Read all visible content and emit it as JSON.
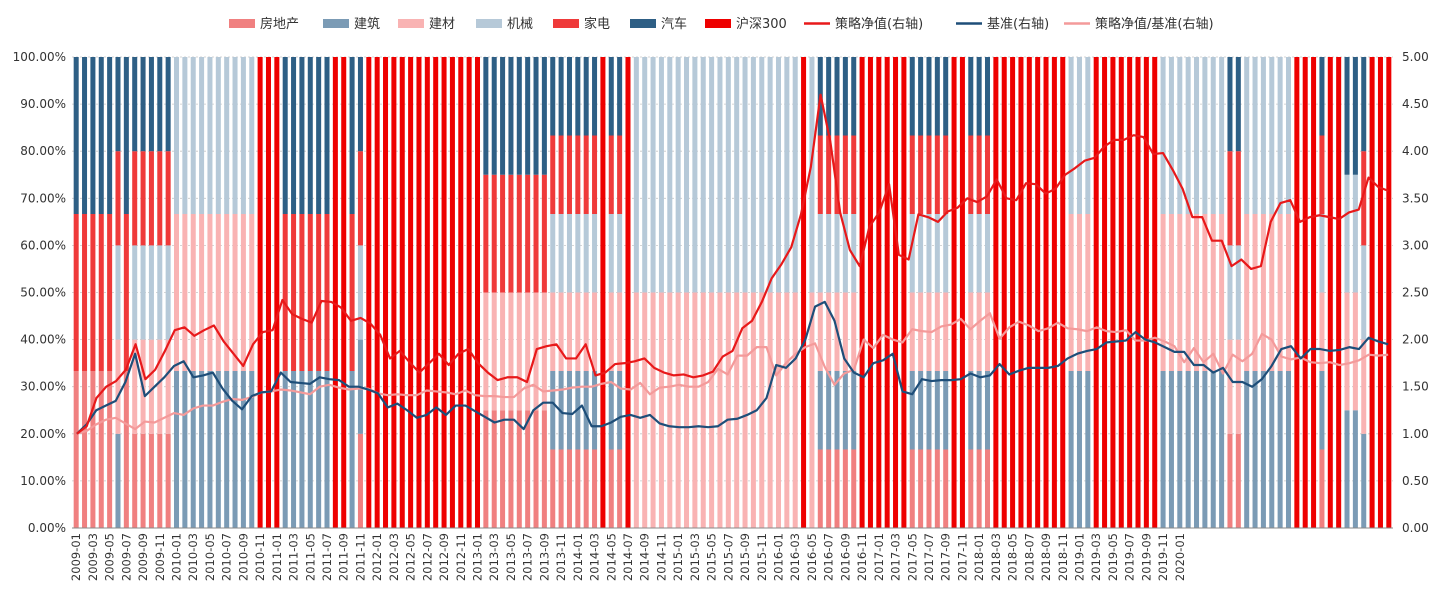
{
  "chart_data": {
    "type": "bar",
    "stacked": true,
    "legend_position": "top",
    "grid": "horizontal dotted",
    "left_axis": {
      "ylim": [
        0,
        1
      ],
      "ticks": [
        "0.00%",
        "10.00%",
        "20.00%",
        "30.00%",
        "40.00%",
        "50.00%",
        "60.00%",
        "70.00%",
        "80.00%",
        "90.00%",
        "100.00%"
      ]
    },
    "right_axis": {
      "ylim": [
        0,
        5
      ],
      "ticks": [
        "0.00",
        "0.50",
        "1.00",
        "1.50",
        "2.00",
        "2.50",
        "3.00",
        "3.50",
        "4.00",
        "4.50",
        "5.00"
      ]
    },
    "x_tick_labels": [
      "2009-01",
      "2009-03",
      "2009-05",
      "2009-07",
      "2009-09",
      "2009-11",
      "2010-01",
      "2010-03",
      "2010-05",
      "2010-07",
      "2010-09",
      "2010-11",
      "2011-01",
      "2011-03",
      "2011-05",
      "2011-07",
      "2011-09",
      "2011-11",
      "2012-01",
      "2012-03",
      "2012-05",
      "2012-07",
      "2012-09",
      "2012-11",
      "2013-01",
      "2013-03",
      "2013-05",
      "2013-07",
      "2013-09",
      "2013-11",
      "2014-01",
      "2014-03",
      "2014-05",
      "2014-07",
      "2014-09",
      "2014-11",
      "2015-01",
      "2015-03",
      "2015-05",
      "2015-07",
      "2015-09",
      "2015-11",
      "2016-01",
      "2016-03",
      "2016-05",
      "2016-07",
      "2016-09",
      "2016-11",
      "2017-01",
      "2017-03",
      "2017-05",
      "2017-07",
      "2017-09",
      "2017-11",
      "2018-01",
      "2018-03",
      "2018-05",
      "2018-07",
      "2018-09",
      "2018-11",
      "2019-01",
      "2019-03",
      "2019-05",
      "2019-07",
      "2019-09",
      "2019-11",
      "2020-01"
    ],
    "bar_series": [
      {
        "name": "房地产",
        "color": "#f08080"
      },
      {
        "name": "建筑",
        "color": "#7b9bb5"
      },
      {
        "name": "建材",
        "color": "#f9b3b3"
      },
      {
        "name": "机械",
        "color": "#b6c9d8"
      },
      {
        "name": "家电",
        "color": "#ef3a3a"
      },
      {
        "name": "汽车",
        "color": "#2e5f85"
      },
      {
        "name": "沪深300",
        "color": "#ee0000"
      }
    ],
    "line_series": [
      {
        "name": "策略净值(右轴)",
        "color": "#e8191a"
      },
      {
        "name": "基准(右轴)",
        "color": "#1e4e79"
      },
      {
        "name": "策略净值/基准(右轴)",
        "color": "#f49a9a"
      }
    ],
    "allocation_months": [
      [
        "房地产",
        "家电",
        "汽车"
      ],
      [
        "房地产",
        "家电",
        "汽车"
      ],
      [
        "房地产",
        "家电",
        "汽车"
      ],
      [
        "房地产",
        "家电",
        "汽车"
      ],
      [
        "房地产",
        "家电",
        "汽车"
      ],
      [
        "建筑",
        "建材",
        "机械",
        "家电",
        "汽车"
      ],
      [
        "房地产",
        "家电",
        "汽车"
      ],
      [
        "房地产",
        "建材",
        "机械",
        "家电",
        "汽车"
      ],
      [
        "房地产",
        "建材",
        "机械",
        "家电",
        "汽车"
      ],
      [
        "房地产",
        "建材",
        "机械",
        "家电",
        "汽车"
      ],
      [
        "房地产",
        "建材",
        "机械",
        "家电",
        "汽车"
      ],
      [
        "房地产",
        "建材",
        "机械",
        "家电",
        "汽车"
      ],
      [
        "建筑",
        "建材",
        "机械"
      ],
      [
        "建筑",
        "建材",
        "机械"
      ],
      [
        "建筑",
        "建材",
        "机械"
      ],
      [
        "建筑",
        "建材",
        "机械"
      ],
      [
        "建筑",
        "建材",
        "机械"
      ],
      [
        "建筑",
        "建材",
        "机械"
      ],
      [
        "建筑",
        "建材",
        "机械"
      ],
      [
        "建筑",
        "建材",
        "机械"
      ],
      [
        "建筑",
        "建材",
        "机械"
      ],
      [
        "建筑",
        "建材",
        "机械"
      ],
      [
        "沪深300"
      ],
      [
        "沪深300"
      ],
      [
        "沪深300"
      ],
      [
        "建筑",
        "家电",
        "汽车"
      ],
      [
        "建筑",
        "家电",
        "汽车"
      ],
      [
        "建筑",
        "家电",
        "汽车"
      ],
      [
        "建筑",
        "家电",
        "汽车"
      ],
      [
        "建筑",
        "家电",
        "汽车"
      ],
      [
        "建筑",
        "家电",
        "汽车"
      ],
      [
        "沪深300"
      ],
      [
        "沪深300"
      ],
      [
        "建筑",
        "家电",
        "汽车"
      ],
      [
        "房地产",
        "建筑",
        "机械",
        "家电",
        "汽车"
      ],
      [
        "沪深300"
      ],
      [
        "沪深300"
      ],
      [
        "沪深300"
      ],
      [
        "沪深300"
      ],
      [
        "沪深300"
      ],
      [
        "沪深300"
      ],
      [
        "沪深300"
      ],
      [
        "沪深300"
      ],
      [
        "沪深300"
      ],
      [
        "沪深300"
      ],
      [
        "沪深300"
      ],
      [
        "沪深300"
      ],
      [
        "沪深300"
      ],
      [
        "沪深300"
      ],
      [
        "房地产",
        "建材",
        "家电",
        "汽车"
      ],
      [
        "房地产",
        "建材",
        "家电",
        "汽车"
      ],
      [
        "房地产",
        "建材",
        "家电",
        "汽车"
      ],
      [
        "房地产",
        "建材",
        "家电",
        "汽车"
      ],
      [
        "房地产",
        "建材",
        "家电",
        "汽车"
      ],
      [
        "房地产",
        "建材",
        "家电",
        "汽车"
      ],
      [
        "房地产",
        "建材",
        "家电",
        "汽车"
      ],
      [
        "房地产",
        "建材",
        "家电",
        "汽车"
      ],
      [
        "房地产",
        "建筑",
        "建材",
        "机械",
        "家电",
        "汽车"
      ],
      [
        "房地产",
        "建筑",
        "建材",
        "机械",
        "家电",
        "汽车"
      ],
      [
        "房地产",
        "建筑",
        "建材",
        "机械",
        "家电",
        "汽车"
      ],
      [
        "房地产",
        "建筑",
        "建材",
        "机械",
        "家电",
        "汽车"
      ],
      [
        "房地产",
        "建筑",
        "建材",
        "机械",
        "家电",
        "汽车"
      ],
      [
        "房地产",
        "建筑",
        "建材",
        "机械",
        "家电",
        "汽车"
      ],
      [
        "沪深300"
      ],
      [
        "房地产",
        "建筑",
        "建材",
        "机械",
        "家电",
        "汽车"
      ],
      [
        "房地产",
        "建筑",
        "建材",
        "机械",
        "家电",
        "汽车"
      ],
      [
        "沪深300"
      ],
      [
        "建材",
        "机械"
      ],
      [
        "建材",
        "机械"
      ],
      [
        "建材",
        "机械"
      ],
      [
        "建材",
        "机械"
      ],
      [
        "建材",
        "机械"
      ],
      [
        "建材",
        "机械"
      ],
      [
        "建材",
        "机械"
      ],
      [
        "建材",
        "机械"
      ],
      [
        "建材",
        "机械"
      ],
      [
        "建材",
        "机械"
      ],
      [
        "建材",
        "机械"
      ],
      [
        "建材",
        "机械"
      ],
      [
        "建材",
        "机械"
      ],
      [
        "建材",
        "机械"
      ],
      [
        "建材",
        "机械"
      ],
      [
        "建材",
        "机械"
      ],
      [
        "建材",
        "机械"
      ],
      [
        "建材",
        "机械"
      ],
      [
        "建材",
        "机械"
      ],
      [
        "建材",
        "机械"
      ],
      [
        "沪深300"
      ],
      [
        "建材",
        "机械"
      ],
      [
        "房地产",
        "建筑",
        "建材",
        "机械",
        "家电",
        "汽车"
      ],
      [
        "房地产",
        "建筑",
        "建材",
        "机械",
        "家电",
        "汽车"
      ],
      [
        "房地产",
        "建筑",
        "建材",
        "机械",
        "家电",
        "汽车"
      ],
      [
        "房地产",
        "建筑",
        "建材",
        "机械",
        "家电",
        "汽车"
      ],
      [
        "房地产",
        "建筑",
        "建材",
        "机械",
        "家电",
        "汽车"
      ],
      [
        "沪深300"
      ],
      [
        "沪深300"
      ],
      [
        "沪深300"
      ],
      [
        "沪深300"
      ],
      [
        "沪深300"
      ],
      [
        "沪深300"
      ],
      [
        "房地产",
        "建筑",
        "建材",
        "机械",
        "家电",
        "汽车"
      ],
      [
        "房地产",
        "建筑",
        "建材",
        "机械",
        "家电",
        "汽车"
      ],
      [
        "房地产",
        "建筑",
        "建材",
        "机械",
        "家电",
        "汽车"
      ],
      [
        "房地产",
        "建筑",
        "建材",
        "机械",
        "家电",
        "汽车"
      ],
      [
        "房地产",
        "建筑",
        "建材",
        "机械",
        "家电",
        "汽车"
      ],
      [
        "沪深300"
      ],
      [
        "沪深300"
      ],
      [
        "房地产",
        "建筑",
        "建材",
        "机械",
        "家电",
        "汽车"
      ],
      [
        "房地产",
        "建筑",
        "建材",
        "机械",
        "家电",
        "汽车"
      ],
      [
        "房地产",
        "建筑",
        "建材",
        "机械",
        "家电",
        "汽车"
      ],
      [
        "沪深300"
      ],
      [
        "沪深300"
      ],
      [
        "沪深300"
      ],
      [
        "沪深300"
      ],
      [
        "沪深300"
      ],
      [
        "沪深300"
      ],
      [
        "沪深300"
      ],
      [
        "沪深300"
      ],
      [
        "沪深300"
      ],
      [
        "建筑",
        "建材",
        "机械"
      ],
      [
        "建筑",
        "建材",
        "机械"
      ],
      [
        "建筑",
        "建材",
        "机械"
      ],
      [
        "沪深300"
      ],
      [
        "沪深300"
      ],
      [
        "沪深300"
      ],
      [
        "沪深300"
      ],
      [
        "沪深300"
      ],
      [
        "沪深300"
      ],
      [
        "沪深300"
      ],
      [
        "沪深300"
      ],
      [
        "建筑",
        "建材",
        "机械"
      ],
      [
        "建筑",
        "建材",
        "机械"
      ],
      [
        "建筑",
        "建材",
        "机械"
      ],
      [
        "建筑",
        "建材",
        "机械"
      ],
      [
        "建筑",
        "建材",
        "机械"
      ],
      [
        "建筑",
        "建材",
        "机械"
      ],
      [
        "建筑",
        "建材",
        "机械"
      ],
      [
        "建筑",
        "建材",
        "机械"
      ],
      [
        "房地产",
        "建材",
        "机械",
        "家电",
        "汽车"
      ],
      [
        "房地产",
        "建材",
        "机械",
        "家电",
        "汽车"
      ],
      [
        "建筑",
        "建材",
        "机械"
      ],
      [
        "建筑",
        "建材",
        "机械"
      ],
      [
        "建筑",
        "建材",
        "机械"
      ],
      [
        "建筑",
        "建材",
        "机械"
      ],
      [
        "建筑",
        "建材",
        "机械"
      ],
      [
        "建筑",
        "建材",
        "机械"
      ],
      [
        "沪深300"
      ],
      [
        "沪深300"
      ],
      [
        "沪深300"
      ],
      [
        "房地产",
        "建筑",
        "建材",
        "机械",
        "家电",
        "汽车"
      ],
      [
        "沪深300"
      ],
      [
        "沪深300"
      ],
      [
        "建筑",
        "建材",
        "机械",
        "汽车"
      ],
      [
        "建筑",
        "建材",
        "机械",
        "汽车"
      ],
      [
        "建筑",
        "建材",
        "机械",
        "家电",
        "汽车"
      ],
      [
        "沪深300"
      ],
      [
        "沪深300"
      ],
      [
        "沪深300"
      ]
    ],
    "strategy_nav": [
      1.0,
      1.08,
      1.38,
      1.5,
      1.56,
      1.68,
      1.95,
      1.58,
      1.68,
      1.88,
      2.1,
      2.13,
      2.04,
      2.1,
      2.15,
      1.98,
      1.85,
      1.72,
      1.95,
      2.08,
      2.1,
      2.42,
      2.27,
      2.22,
      2.18,
      2.41,
      2.4,
      2.34,
      2.2,
      2.23,
      2.17,
      2.05,
      1.8,
      1.88,
      1.76,
      1.65,
      1.75,
      1.85,
      1.73,
      1.85,
      1.9,
      1.75,
      1.65,
      1.57,
      1.6,
      1.6,
      1.55,
      1.9,
      1.93,
      1.95,
      1.8,
      1.8,
      1.95,
      1.62,
      1.65,
      1.74,
      1.75,
      1.77,
      1.8,
      1.7,
      1.65,
      1.62,
      1.63,
      1.6,
      1.62,
      1.66,
      1.82,
      1.88,
      2.12,
      2.2,
      2.4,
      2.65,
      2.8,
      2.98,
      3.33,
      3.83,
      4.6,
      4.1,
      3.35,
      2.95,
      2.78,
      3.2,
      3.35,
      3.65,
      2.9,
      2.85,
      3.33,
      3.3,
      3.25,
      3.36,
      3.4,
      3.5,
      3.46,
      3.52,
      3.7,
      3.5,
      3.48,
      3.66,
      3.65,
      3.55,
      3.6,
      3.75,
      3.82,
      3.9,
      3.93,
      4.05,
      4.12,
      4.12,
      4.17,
      4.15,
      3.97,
      3.98,
      3.8,
      3.6,
      3.3,
      3.3,
      3.05,
      3.05,
      2.78,
      2.85,
      2.75,
      2.78,
      3.25,
      3.45,
      3.48,
      3.25,
      3.3,
      3.32,
      3.3,
      3.28,
      3.35,
      3.38,
      3.72,
      3.62,
      3.58
    ],
    "benchmark_nav": [
      1.0,
      1.1,
      1.25,
      1.3,
      1.35,
      1.55,
      1.85,
      1.4,
      1.5,
      1.6,
      1.72,
      1.77,
      1.6,
      1.62,
      1.65,
      1.48,
      1.35,
      1.26,
      1.4,
      1.44,
      1.45,
      1.65,
      1.55,
      1.54,
      1.53,
      1.6,
      1.58,
      1.57,
      1.5,
      1.5,
      1.47,
      1.43,
      1.28,
      1.32,
      1.25,
      1.17,
      1.2,
      1.28,
      1.2,
      1.3,
      1.3,
      1.24,
      1.18,
      1.12,
      1.15,
      1.15,
      1.05,
      1.25,
      1.33,
      1.33,
      1.22,
      1.21,
      1.3,
      1.08,
      1.08,
      1.12,
      1.18,
      1.2,
      1.17,
      1.2,
      1.11,
      1.08,
      1.07,
      1.07,
      1.08,
      1.07,
      1.08,
      1.15,
      1.16,
      1.2,
      1.25,
      1.38,
      1.73,
      1.7,
      1.8,
      2.0,
      2.35,
      2.4,
      2.2,
      1.8,
      1.65,
      1.6,
      1.75,
      1.78,
      1.85,
      1.45,
      1.42,
      1.58,
      1.56,
      1.57,
      1.57,
      1.58,
      1.64,
      1.6,
      1.62,
      1.74,
      1.63,
      1.67,
      1.7,
      1.7,
      1.7,
      1.72,
      1.8,
      1.85,
      1.88,
      1.9,
      1.97,
      1.98,
      1.99,
      2.08,
      2.0,
      1.97,
      1.92,
      1.87,
      1.87,
      1.73,
      1.73,
      1.65,
      1.7,
      1.55,
      1.55,
      1.5,
      1.58,
      1.72,
      1.9,
      1.93,
      1.8,
      1.9,
      1.9,
      1.88,
      1.89,
      1.92,
      1.9,
      2.02,
      1.98,
      1.95
    ],
    "ratio_nav": [
      1.0,
      1.03,
      1.1,
      1.15,
      1.17,
      1.11,
      1.05,
      1.13,
      1.12,
      1.17,
      1.22,
      1.2,
      1.27,
      1.3,
      1.3,
      1.34,
      1.37,
      1.36,
      1.39,
      1.44,
      1.45,
      1.47,
      1.46,
      1.44,
      1.42,
      1.5,
      1.52,
      1.49,
      1.47,
      1.48,
      1.48,
      1.43,
      1.41,
      1.42,
      1.41,
      1.41,
      1.46,
      1.45,
      1.44,
      1.42,
      1.46,
      1.41,
      1.4,
      1.4,
      1.39,
      1.39,
      1.48,
      1.52,
      1.45,
      1.46,
      1.47,
      1.49,
      1.5,
      1.5,
      1.53,
      1.55,
      1.48,
      1.47,
      1.54,
      1.42,
      1.49,
      1.5,
      1.52,
      1.5,
      1.5,
      1.55,
      1.69,
      1.63,
      1.83,
      1.83,
      1.92,
      1.92,
      1.62,
      1.75,
      1.85,
      1.92,
      1.96,
      1.71,
      1.52,
      1.64,
      1.68,
      2.0,
      1.91,
      2.05,
      2.0,
      1.97,
      2.11,
      2.09,
      2.08,
      2.14,
      2.16,
      2.22,
      2.11,
      2.2,
      2.28,
      2.01,
      2.13,
      2.19,
      2.15,
      2.09,
      2.12,
      2.18,
      2.12,
      2.11,
      2.09,
      2.13,
      2.09,
      2.08,
      2.1,
      1.99,
      1.99,
      2.02,
      1.98,
      1.93,
      1.76,
      1.91,
      1.76,
      1.85,
      1.64,
      1.84,
      1.77,
      1.85,
      2.06,
      2.0,
      1.82,
      1.79,
      1.81,
      1.76,
      1.75,
      1.76,
      1.73,
      1.75,
      1.78,
      1.84,
      1.83,
      1.84
    ]
  }
}
